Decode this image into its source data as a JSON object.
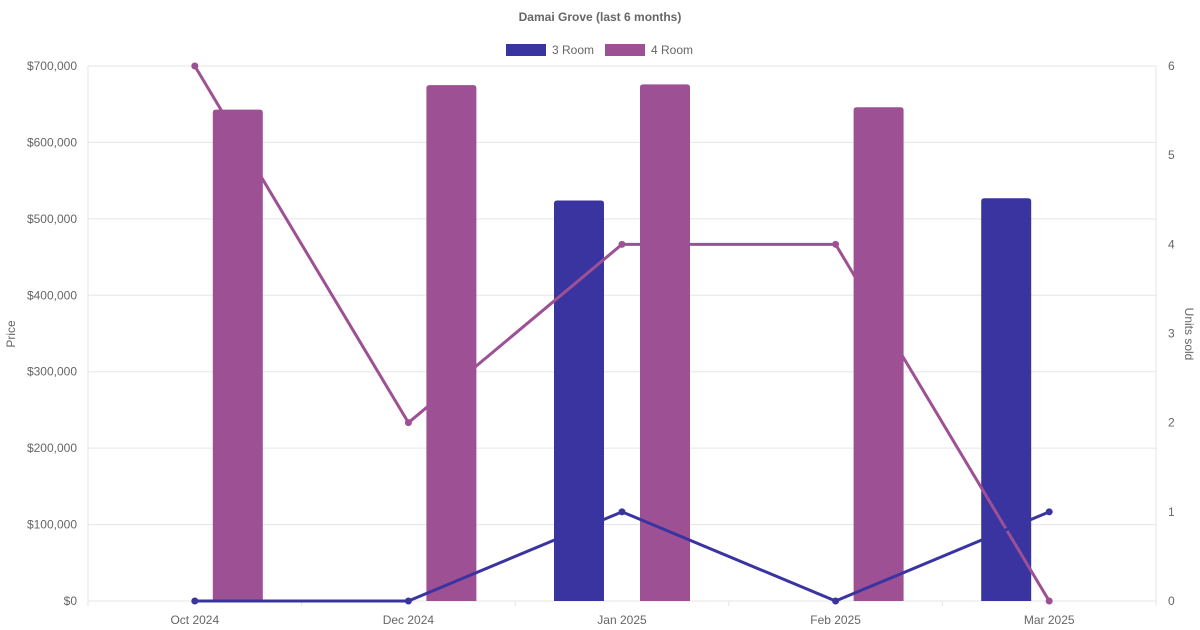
{
  "chart_data": {
    "type": "bar",
    "title": "Damai Grove (last 6 months)",
    "categories": [
      "Oct 2024",
      "Dec 2024",
      "Jan 2025",
      "Feb 2025",
      "Mar 2025"
    ],
    "y_left": {
      "label": "Price",
      "range": [
        0,
        700000
      ],
      "ticks": [
        "$0",
        "$100,000",
        "$200,000",
        "$300,000",
        "$400,000",
        "$500,000",
        "$600,000",
        "$700,000"
      ]
    },
    "y_right": {
      "label": "Units sold",
      "range": [
        0,
        6
      ],
      "ticks": [
        "0",
        "1",
        "2",
        "3",
        "4",
        "5",
        "6"
      ]
    },
    "legend_placement": "top-center",
    "grid": true,
    "series": [
      {
        "name": "3 Room",
        "color": "#3a34a1",
        "bar_values": [
          null,
          null,
          524000,
          null,
          527000
        ],
        "line_values": [
          0,
          0,
          1,
          0,
          1
        ]
      },
      {
        "name": "4 Room",
        "color": "#9e5094",
        "bar_values": [
          643000,
          675000,
          676000,
          646000,
          null
        ],
        "line_values": [
          6,
          2,
          4,
          4,
          0
        ]
      }
    ]
  }
}
